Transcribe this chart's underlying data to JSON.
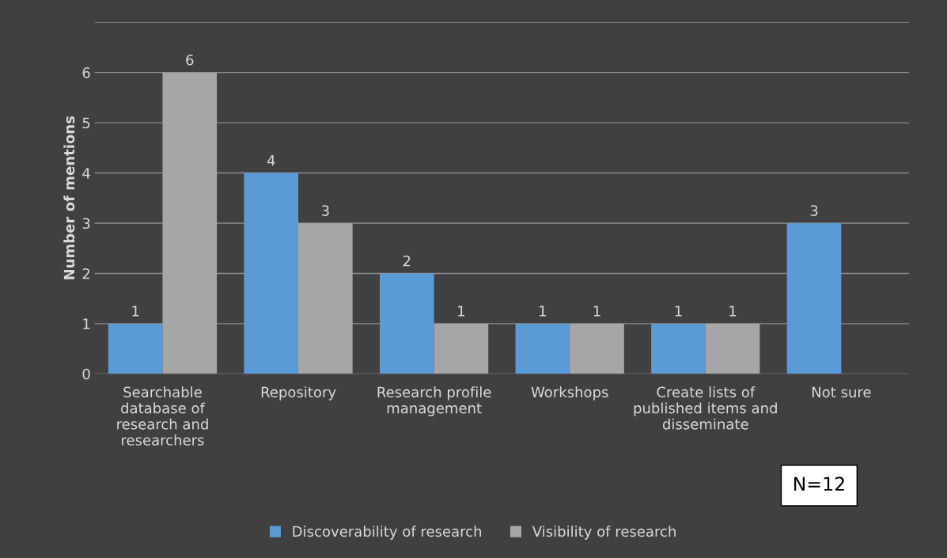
{
  "chart_data": {
    "type": "bar",
    "ylabel": "Number of mentions",
    "categories": [
      "Searchable database of research and researchers",
      "Repository",
      "Research profile management",
      "Workshops",
      "Create lists of published items and disseminate",
      "Not sure"
    ],
    "series": [
      {
        "name": "Discoverability of research",
        "color": "#5b9bd5",
        "values": [
          1,
          4,
          2,
          1,
          1,
          3
        ]
      },
      {
        "name": "Visibility of research",
        "color": "#a6a6a6",
        "values": [
          6,
          3,
          1,
          1,
          1,
          null
        ]
      }
    ],
    "ylim": [
      0,
      7
    ],
    "yticks": [
      0,
      1,
      2,
      3,
      4,
      5,
      6,
      {
        "value": 7,
        "label": null
      }
    ],
    "grid": "y",
    "legend": "bottom",
    "data_labels": true,
    "annotations": [
      "N=12"
    ]
  }
}
